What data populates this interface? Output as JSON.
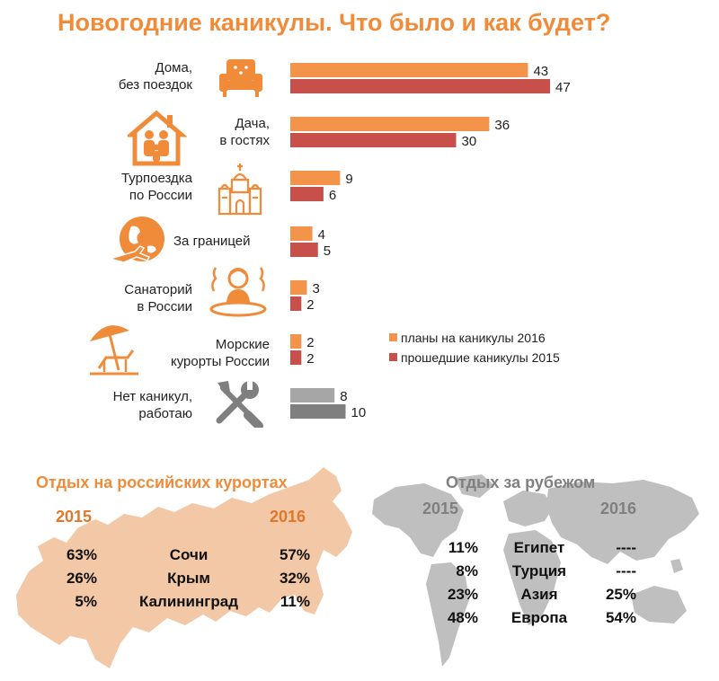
{
  "title": "Новогодние каникулы. Что было и как будет?",
  "chart_data": {
    "type": "bar",
    "orientation": "horizontal",
    "title": "Новогодние каникулы. Что было и как будет?",
    "categories": [
      {
        "lines": [
          "Дома,",
          "без поездок"
        ],
        "icon": "sofa-icon"
      },
      {
        "lines": [
          "Дача,",
          "в гостях"
        ],
        "icon": "family-house-icon"
      },
      {
        "lines": [
          "Турпоездка",
          "по России"
        ],
        "icon": "church-icon"
      },
      {
        "lines": [
          "За границей"
        ],
        "icon": "globe-plane-icon"
      },
      {
        "lines": [
          "Санаторий",
          "в России"
        ],
        "icon": "spa-person-icon"
      },
      {
        "lines": [
          "Морские",
          "курорты России"
        ],
        "icon": "beach-umbrella-icon"
      },
      {
        "lines": [
          "Нет каникул,",
          "работаю"
        ],
        "icon": "tools-icon"
      }
    ],
    "series": [
      {
        "name": "планы на каникулы 2016",
        "values": [
          43,
          36,
          9,
          4,
          3,
          2,
          8
        ],
        "color": "#f4934a",
        "alt_color": "#a6a6a6"
      },
      {
        "name": "прошедшие каникулы 2015",
        "values": [
          47,
          30,
          6,
          5,
          2,
          2,
          10
        ],
        "color": "#c8504b",
        "alt_color": "#7f7f7f"
      }
    ],
    "xlim": [
      0,
      50
    ]
  },
  "legend": {
    "plans_2016": "планы на каникулы 2016",
    "past_2015": "прошедшие каникулы 2015"
  },
  "russia": {
    "title": "Отдых на российских курортах",
    "year_left": "2015",
    "year_right": "2016",
    "rows": [
      {
        "place": "Сочи",
        "y2015": "63%",
        "y2016": "57%"
      },
      {
        "place": "Крым",
        "y2015": "26%",
        "y2016": "32%"
      },
      {
        "place": "Калининград",
        "y2015": "5%",
        "y2016": "11%"
      }
    ]
  },
  "abroad": {
    "title": "Отдых за рубежом",
    "year_left": "2015",
    "year_right": "2016",
    "rows": [
      {
        "place": "Египет",
        "y2015": "11%",
        "y2016": "----"
      },
      {
        "place": "Турция",
        "y2015": "8%",
        "y2016": "----"
      },
      {
        "place": "Азия",
        "y2015": "23%",
        "y2016": "25%"
      },
      {
        "place": "Европа",
        "y2015": "48%",
        "y2016": "54%"
      }
    ]
  },
  "colors": {
    "accent": "#f08b3a",
    "orange": "#f4934a",
    "red": "#c8504b",
    "map_ru": "#f2c8a6",
    "map_world": "#bfbfbf",
    "grey_title": "#808080"
  }
}
